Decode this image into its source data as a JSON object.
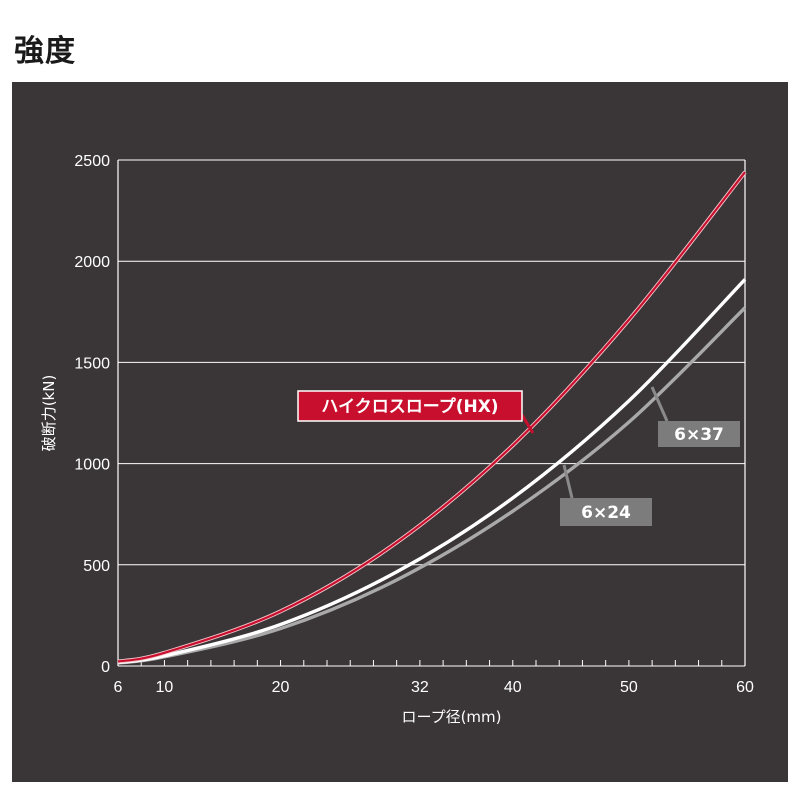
{
  "page": {
    "title": "強度"
  },
  "chart_data": {
    "type": "line",
    "xlabel": "ロープ径(mm)",
    "ylabel": "破断力(kN)",
    "xlim": [
      6,
      60
    ],
    "ylim": [
      0,
      2500
    ],
    "x_ticks": [
      6,
      10,
      20,
      32,
      40,
      50,
      60
    ],
    "y_ticks": [
      0,
      500,
      1000,
      1500,
      2000,
      2500
    ],
    "grid": true,
    "series": [
      {
        "name": "ハイクロスロープ(HX)",
        "color": "#c8102e",
        "x": [
          6,
          10,
          20,
          30,
          40,
          50,
          60
        ],
        "y": [
          22,
          65,
          270,
          610,
          1090,
          1710,
          2440
        ]
      },
      {
        "name": "6×37",
        "color": "#ffffff",
        "x": [
          6,
          10,
          20,
          30,
          40,
          50,
          60
        ],
        "y": [
          17,
          50,
          205,
          465,
          830,
          1310,
          1910
        ]
      },
      {
        "name": "6×24",
        "color": "#a9a9a9",
        "x": [
          6,
          10,
          20,
          30,
          40,
          50,
          60
        ],
        "y": [
          15,
          45,
          185,
          425,
          765,
          1205,
          1770
        ]
      }
    ]
  }
}
